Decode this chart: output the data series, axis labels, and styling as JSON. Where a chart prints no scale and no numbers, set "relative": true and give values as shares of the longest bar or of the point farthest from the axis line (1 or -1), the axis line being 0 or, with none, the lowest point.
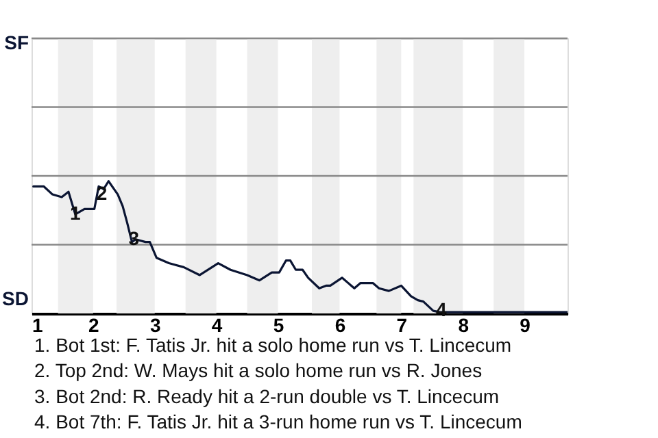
{
  "chart_data": {
    "type": "line",
    "relative": true,
    "x": [
      1.03,
      1.2,
      1.34,
      1.49,
      1.6,
      1.71,
      1.86,
      2.02,
      2.09,
      2.17,
      2.25,
      2.34,
      2.4,
      2.48,
      2.55,
      2.63,
      2.69,
      2.85,
      2.92,
      3.03,
      3.23,
      3.47,
      3.73,
      4.03,
      4.23,
      4.5,
      4.7,
      4.9,
      5.02,
      5.13,
      5.2,
      5.29,
      5.4,
      5.49,
      5.67,
      5.78,
      5.85,
      6.04,
      6.24,
      6.34,
      6.54,
      6.64,
      6.8,
      7,
      7.16,
      7.27,
      7.36,
      7.52,
      7.63,
      7.73,
      8,
      8.5,
      9,
      9.35,
      9.7
    ],
    "series": [
      {
        "color": "#0b1533",
        "values": [
          0.96,
          0.96,
          0.9,
          0.88,
          0.92,
          0.75,
          0.79,
          0.79,
          0.96,
          0.94,
          1,
          0.94,
          0.9,
          0.81,
          0.69,
          0.54,
          0.56,
          0.54,
          0.54,
          0.42,
          0.38,
          0.35,
          0.29,
          0.38,
          0.33,
          0.29,
          0.25,
          0.31,
          0.31,
          0.4,
          0.4,
          0.33,
          0.33,
          0.27,
          0.19,
          0.21,
          0.21,
          0.27,
          0.19,
          0.23,
          0.23,
          0.19,
          0.17,
          0.21,
          0.13,
          0.1,
          0.09,
          0.02,
          0.01,
          0.01,
          0.01,
          0.01,
          0.01,
          0.01,
          0.01
        ]
      }
    ],
    "xlim": [
      1,
      9.7
    ],
    "xticks": [
      1,
      2,
      3,
      4,
      5,
      6,
      7,
      8,
      9
    ],
    "tick_labels": "x",
    "marker": "none",
    "line_style": "solid",
    "ref_lines": [
      {
        "axis": "y",
        "value": 0.52,
        "color": "#888888"
      },
      {
        "axis": "y",
        "value": 1.04,
        "color": "#888888"
      },
      {
        "axis": "y",
        "value": 1.56,
        "color": "#888888"
      },
      {
        "axis": "y",
        "value": 2.08,
        "color": "#888888"
      }
    ],
    "bands": [
      {
        "axis": "x",
        "from": 1.43,
        "to": 2,
        "color": "#eeeeee"
      },
      {
        "axis": "x",
        "from": 2.38,
        "to": 3,
        "color": "#eeeeee"
      },
      {
        "axis": "x",
        "from": 3.5,
        "to": 4,
        "color": "#eeeeee"
      },
      {
        "axis": "x",
        "from": 4.5,
        "to": 5,
        "color": "#eeeeee"
      },
      {
        "axis": "x",
        "from": 5.55,
        "to": 6,
        "color": "#eeeeee"
      },
      {
        "axis": "x",
        "from": 6.6,
        "to": 7,
        "color": "#eeeeee"
      },
      {
        "axis": "x",
        "from": 7.2,
        "to": 8,
        "color": "#eeeeee"
      },
      {
        "axis": "x",
        "from": 8.5,
        "to": 9,
        "color": "#eeeeee"
      }
    ],
    "annotations": [
      {
        "text": "1",
        "x": 1.71,
        "y": 0.75
      },
      {
        "text": "2",
        "x": 2.14,
        "y": 0.9
      },
      {
        "text": "3",
        "x": 2.66,
        "y": 0.56
      },
      {
        "text": "4",
        "x": 7.65,
        "y": 0.02
      },
      "SF",
      "SD",
      "1. Bot 1st: F. Tatis Jr. hit a solo home run vs T. Lincecum",
      "2. Top 2nd: W. Mays hit a solo home run vs R. Jones",
      "3. Bot 2nd: R. Ready hit a 2-run double vs T. Lincecum",
      "4. Bot 7th: F. Tatis Jr. hit a 3-run home run vs T. Lincecum"
    ]
  }
}
